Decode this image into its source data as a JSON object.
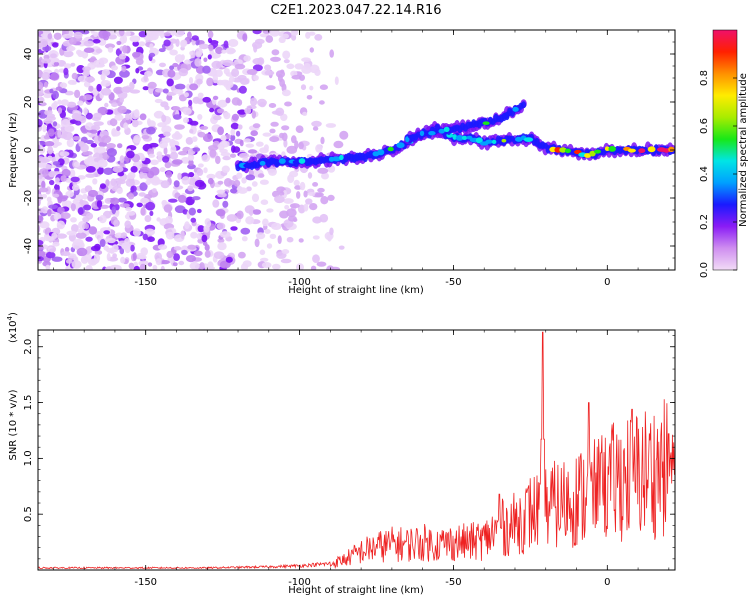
{
  "title": "C2E1.2023.047.22.14.R16",
  "chart_data": [
    {
      "type": "heatmap",
      "xlabel": "Height of straight line (km)",
      "ylabel": "Frequency (Hz)",
      "xlim": [
        -185,
        22
      ],
      "ylim": [
        -50,
        50
      ],
      "xticks": [
        -150,
        -100,
        -50,
        0
      ],
      "yticks": [
        -40,
        -20,
        0,
        20,
        40
      ],
      "colorbar": {
        "label": "Normalized spectral amplitude",
        "range": [
          0,
          1
        ],
        "ticks": [
          "0.0",
          "0.2",
          "0.4",
          "0.6",
          "0.8"
        ],
        "colormap": [
          "#f2dcf6",
          "#cf8ef0",
          "#8a1cf5",
          "#1a1aff",
          "#00a0ff",
          "#00e5e5",
          "#18e818",
          "#a8ec00",
          "#ffec00",
          "#ff9000",
          "#ff2000",
          "#f0106a"
        ]
      },
      "trace": [
        {
          "x": -120,
          "y": -7
        },
        {
          "x": -110,
          "y": -5
        },
        {
          "x": -100,
          "y": -5
        },
        {
          "x": -90,
          "y": -4
        },
        {
          "x": -80,
          "y": -3
        },
        {
          "x": -70,
          "y": 0
        },
        {
          "x": -65,
          "y": 3
        },
        {
          "x": -60,
          "y": 7
        },
        {
          "x": -55,
          "y": 9
        },
        {
          "x": -50,
          "y": 5
        },
        {
          "x": -45,
          "y": 5
        },
        {
          "x": -40,
          "y": 3
        },
        {
          "x": -35,
          "y": 4
        },
        {
          "x": -30,
          "y": 4
        },
        {
          "x": -25,
          "y": 5
        },
        {
          "x": -20,
          "y": 1
        },
        {
          "x": -15,
          "y": 0
        },
        {
          "x": -10,
          "y": -1
        },
        {
          "x": -5,
          "y": -2
        },
        {
          "x": 0,
          "y": 0
        },
        {
          "x": 10,
          "y": 0
        },
        {
          "x": 22,
          "y": 0
        }
      ],
      "branch": [
        {
          "x": -65,
          "y": 5
        },
        {
          "x": -55,
          "y": 8
        },
        {
          "x": -45,
          "y": 10
        },
        {
          "x": -38,
          "y": 12
        },
        {
          "x": -32,
          "y": 15
        },
        {
          "x": -27,
          "y": 19
        }
      ],
      "noise_region_x": [
        -185,
        -85
      ]
    },
    {
      "type": "line",
      "xlabel": "Height of straight line (km)",
      "ylabel": "SNR (10 * v/v)",
      "y_multiplier": "(x10",
      "y_multiplier_exp": "4",
      "y_multiplier_close": ")",
      "xlim": [
        -185,
        22
      ],
      "ylim": [
        0,
        2.15
      ],
      "xticks": [
        -150,
        -100,
        -50,
        0
      ],
      "yticks": [
        "0.5",
        "1.0",
        "1.5",
        "2.0"
      ],
      "color": "#ee2222",
      "series_envelope": [
        [
          -185,
          0.02
        ],
        [
          -130,
          0.02
        ],
        [
          -110,
          0.03
        ],
        [
          -100,
          0.04
        ],
        [
          -90,
          0.06
        ],
        [
          -85,
          0.12
        ],
        [
          -80,
          0.2
        ],
        [
          -75,
          0.25
        ],
        [
          -70,
          0.28
        ],
        [
          -65,
          0.28
        ],
        [
          -60,
          0.3
        ],
        [
          -55,
          0.28
        ],
        [
          -50,
          0.3
        ],
        [
          -45,
          0.3
        ],
        [
          -40,
          0.33
        ],
        [
          -35,
          0.45
        ],
        [
          -30,
          0.5
        ],
        [
          -25,
          0.62
        ],
        [
          -20,
          0.68
        ],
        [
          -15,
          0.72
        ],
        [
          -10,
          0.78
        ],
        [
          -5,
          0.82
        ],
        [
          0,
          0.92
        ],
        [
          5,
          1.0
        ],
        [
          10,
          1.05
        ],
        [
          15,
          1.08
        ],
        [
          22,
          1.12
        ]
      ],
      "spikes": [
        {
          "x": -35,
          "y": 0.68
        },
        {
          "x": -21,
          "y": 2.13
        },
        {
          "x": -6,
          "y": 1.5
        },
        {
          "x": 8,
          "y": 1.44
        },
        {
          "x": 20,
          "y": 1.22
        },
        {
          "x": -2,
          "y": 1.05
        }
      ]
    }
  ]
}
